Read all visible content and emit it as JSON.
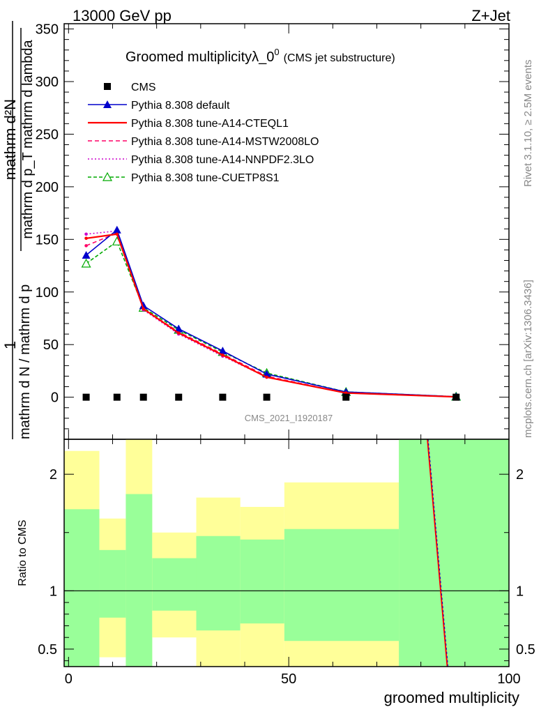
{
  "header": {
    "left": "13000 GeV pp",
    "right": "Z+Jet"
  },
  "side": {
    "rivet": "Rivet 3.1.10, ≥ 2.5M events",
    "mcplots": "mcplots.cern.ch [arXiv:1306.3436]"
  },
  "colors": {
    "cms": "#000000",
    "default": "#0000cc",
    "cteql1": "#ff0000",
    "mstw": "#ff0066",
    "nnpdf": "#cc00cc",
    "cuetp8s1": "#00aa00",
    "band_inner": "#99ff99",
    "band_outer": "#ffff99"
  },
  "chart_data": [
    {
      "type": "line",
      "title": "Groomed multiplicityλ_0",
      "title_sup": "0",
      "title_extra": "(CMS jet substructure)",
      "watermark": "CMS_2021_I1920187",
      "ylabel_main": "mathrm d N / mathrm d p_T mathrm d p_T mathrm d lambda",
      "ylabel_num": "mathrm d²N",
      "ylabel_den": "mathrm d N / mathrm d p",
      "ylabel_pre": "1",
      "ylabel_frac_top": "mathrm d²N",
      "ylabel_frac_bot": "mathrm d p_T mathrm d lambda",
      "xlim": [
        -1,
        100
      ],
      "ylim": [
        -40,
        355
      ],
      "yticks": [
        0,
        50,
        100,
        150,
        200,
        250,
        300,
        350
      ],
      "legend_position": "top-left",
      "x": [
        4,
        11,
        17,
        25,
        35,
        45,
        63,
        88
      ],
      "series": [
        {
          "name": "CMS",
          "key": "cms",
          "marker": "square",
          "dash": "",
          "values": [
            0,
            0,
            0,
            0,
            0,
            0,
            0,
            0
          ]
        },
        {
          "name": "Pythia 8.308 default",
          "key": "default",
          "marker": "triangle-filled",
          "dash": "",
          "values": [
            135,
            159,
            87,
            65,
            44,
            22,
            5,
            0.5
          ]
        },
        {
          "name": "Pythia 8.308 tune-A14-CTEQL1",
          "key": "cteql1",
          "marker": "circle",
          "dash": "",
          "values": [
            151,
            155,
            84,
            61,
            40,
            19,
            4,
            0.3
          ]
        },
        {
          "name": "Pythia 8.308 tune-A14-MSTW2008LO",
          "key": "mstw",
          "marker": "circle",
          "dash": "6,4",
          "values": [
            144,
            156,
            84,
            62,
            41,
            20,
            4,
            0.3
          ]
        },
        {
          "name": "Pythia 8.308 tune-A14-NNPDF2.3LO",
          "key": "nnpdf",
          "marker": "circle",
          "dash": "2,3",
          "values": [
            155,
            158,
            83,
            60,
            39,
            19,
            4,
            0.3
          ]
        },
        {
          "name": "Pythia 8.308 tune-CUETP8S1",
          "key": "cuetp8s1",
          "marker": "triangle-open",
          "dash": "5,3",
          "values": [
            127,
            148,
            85,
            64,
            43,
            23,
            5,
            0.5
          ]
        }
      ]
    },
    {
      "type": "area",
      "ylabel": "Ratio to CMS",
      "xlabel": "groomed multiplicity",
      "xlim": [
        -1,
        100
      ],
      "ylim": [
        0.35,
        2.3
      ],
      "yticks": [
        0.5,
        1,
        2
      ],
      "ytick_labels": [
        "0.5",
        "1",
        "2"
      ],
      "xticks": [
        0,
        50,
        100
      ],
      "bands": [
        {
          "x0": -1,
          "x1": 7,
          "outer": [
            0.35,
            2.2
          ],
          "inner": [
            0.35,
            1.7
          ]
        },
        {
          "x0": 7,
          "x1": 13,
          "outer": [
            0.43,
            1.62
          ],
          "inner": [
            0.77,
            1.35
          ]
        },
        {
          "x0": 13,
          "x1": 19,
          "outer": [
            0.35,
            2.3
          ],
          "inner": [
            0.35,
            1.83
          ]
        },
        {
          "x0": 19,
          "x1": 29,
          "outer": [
            0.6,
            1.5
          ],
          "inner": [
            0.83,
            1.28
          ]
        },
        {
          "x0": 29,
          "x1": 39,
          "outer": [
            0.35,
            1.8
          ],
          "inner": [
            0.66,
            1.47
          ]
        },
        {
          "x0": 39,
          "x1": 49,
          "outer": [
            0.35,
            1.72
          ],
          "inner": [
            0.72,
            1.44
          ]
        },
        {
          "x0": 49,
          "x1": 75,
          "outer": [
            0.35,
            1.93
          ],
          "inner": [
            0.57,
            1.53
          ]
        },
        {
          "x0": 75,
          "x1": 100,
          "outer": [
            0.35,
            2.3
          ],
          "inner": [
            0.35,
            2.3
          ]
        }
      ],
      "ratio_line": {
        "x0": 81.5,
        "y0": 2.3,
        "x1": 86,
        "y1": 0.35
      }
    }
  ]
}
